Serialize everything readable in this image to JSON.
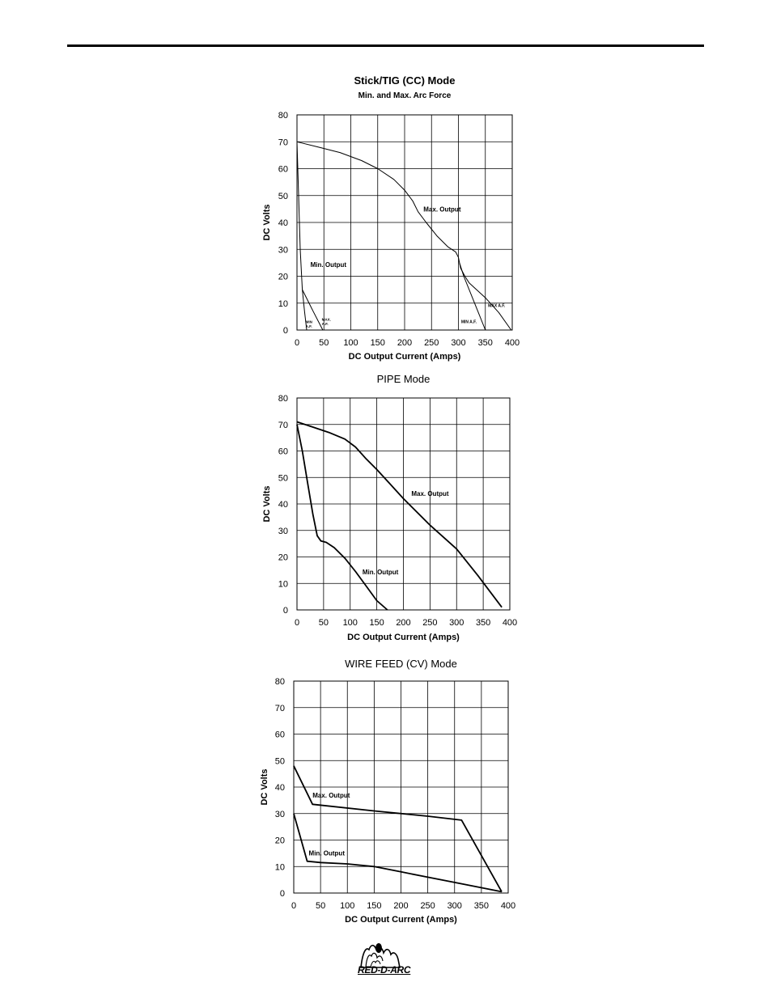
{
  "page": {
    "brand": "RED-D-ARC"
  },
  "chart_data": [
    {
      "type": "line",
      "title": "Stick/TIG (CC) Mode",
      "subtitle": "Min. and Max. Arc Force",
      "xlabel": "DC Output Current (Amps)",
      "ylabel": "DC Volts",
      "xlim": [
        0,
        400
      ],
      "ylim": [
        0,
        80
      ],
      "xticks": [
        0,
        50,
        100,
        150,
        200,
        250,
        300,
        350,
        400
      ],
      "yticks": [
        0,
        10,
        20,
        30,
        40,
        50,
        60,
        70,
        80
      ],
      "grid": true,
      "series": [
        {
          "name": "Max. Output",
          "x": [
            0,
            40,
            80,
            120,
            150,
            180,
            200,
            215,
            225,
            240,
            260,
            280,
            295,
            300,
            302,
            304,
            312,
            320
          ],
          "y": [
            70,
            68,
            66,
            63,
            60,
            56,
            52,
            48,
            44,
            40,
            35,
            31,
            29,
            27,
            25,
            23,
            20,
            17.5
          ]
        },
        {
          "name": "MAX A.F.",
          "x": [
            320,
            350,
            375,
            398
          ],
          "y": [
            17.5,
            12,
            6.5,
            0
          ]
        },
        {
          "name": "MIN A.F.",
          "x": [
            302,
            310,
            330,
            350
          ],
          "y": [
            25,
            20,
            10,
            0
          ]
        },
        {
          "name": "Min. Output",
          "x": [
            0,
            3,
            6,
            10
          ],
          "y": [
            70,
            50,
            30,
            15
          ]
        },
        {
          "name": "MAX. A.F.",
          "x": [
            10,
            30,
            48
          ],
          "y": [
            15,
            7,
            0
          ]
        },
        {
          "name": "MIN A.F.",
          "x": [
            10,
            14,
            18
          ],
          "y": [
            15,
            7,
            0
          ]
        }
      ],
      "annotations": [
        {
          "text": "Max. Output",
          "x": 235,
          "y": 44,
          "size": 8
        },
        {
          "text": "Min. Output",
          "x": 25,
          "y": 23.5,
          "size": 8
        },
        {
          "text": "MAX A.F.",
          "x": 355,
          "y": 8.5,
          "size": 5
        },
        {
          "text": "MIN A.F.",
          "x": 305,
          "y": 2.5,
          "size": 5
        },
        {
          "text": "MAX.",
          "x": 46,
          "y": 3.5,
          "size": 4.5
        },
        {
          "text": "A.F.",
          "x": 46,
          "y": 1.8,
          "size": 4.5
        },
        {
          "text": "MIN",
          "x": 16,
          "y": 2.5,
          "size": 4.5
        },
        {
          "text": "A.F.",
          "x": 16,
          "y": 0.9,
          "size": 4.5
        }
      ]
    },
    {
      "type": "line",
      "title": "PIPE Mode",
      "xlabel": "DC Output Current (Amps)",
      "ylabel": "DC Volts",
      "xlim": [
        0,
        400
      ],
      "ylim": [
        0,
        80
      ],
      "xticks": [
        0,
        50,
        100,
        150,
        200,
        250,
        300,
        350,
        400
      ],
      "yticks": [
        0,
        10,
        20,
        30,
        40,
        50,
        60,
        70,
        80
      ],
      "grid": true,
      "series": [
        {
          "name": "Max. Output",
          "x": [
            0,
            30,
            60,
            90,
            110,
            130,
            150,
            175,
            200,
            250,
            300,
            340,
            385
          ],
          "y": [
            71,
            69,
            67,
            64.5,
            61.5,
            57,
            53,
            47.5,
            42,
            32,
            23,
            13,
            1
          ]
        },
        {
          "name": "Min. Output",
          "x": [
            0,
            10,
            20,
            30,
            38,
            45,
            55,
            70,
            90,
            110,
            130,
            150,
            170
          ],
          "y": [
            70,
            60,
            48,
            36,
            28,
            26,
            25.5,
            23.5,
            19.5,
            14.5,
            9,
            3.5,
            0
          ]
        }
      ],
      "annotations": [
        {
          "text": "Max. Output",
          "x": 215,
          "y": 43,
          "size": 8
        },
        {
          "text": "Min. Output",
          "x": 123,
          "y": 13.5,
          "size": 8
        }
      ]
    },
    {
      "type": "line",
      "title": "WIRE FEED (CV) Mode",
      "xlabel": "DC Output Current (Amps)",
      "ylabel": "DC Volts",
      "xlim": [
        0,
        400
      ],
      "ylim": [
        0,
        80
      ],
      "xticks": [
        0,
        50,
        100,
        150,
        200,
        250,
        300,
        350,
        400
      ],
      "yticks": [
        0,
        10,
        20,
        30,
        40,
        50,
        60,
        70,
        80
      ],
      "grid": true,
      "series": [
        {
          "name": "Max. Output",
          "x": [
            0,
            35,
            150,
            250,
            313,
            388
          ],
          "y": [
            48,
            33.5,
            31,
            29,
            27.5,
            0.5
          ]
        },
        {
          "name": "Min. Output",
          "x": [
            0,
            25,
            50,
            100,
            150,
            200,
            250,
            300,
            388
          ],
          "y": [
            30,
            12,
            11.5,
            11,
            10,
            8,
            6,
            4,
            0.5
          ]
        }
      ],
      "annotations": [
        {
          "text": "Max. Output",
          "x": 35,
          "y": 36,
          "size": 8
        },
        {
          "text": "Min. Output",
          "x": 28,
          "y": 14.2,
          "size": 8
        }
      ]
    }
  ]
}
